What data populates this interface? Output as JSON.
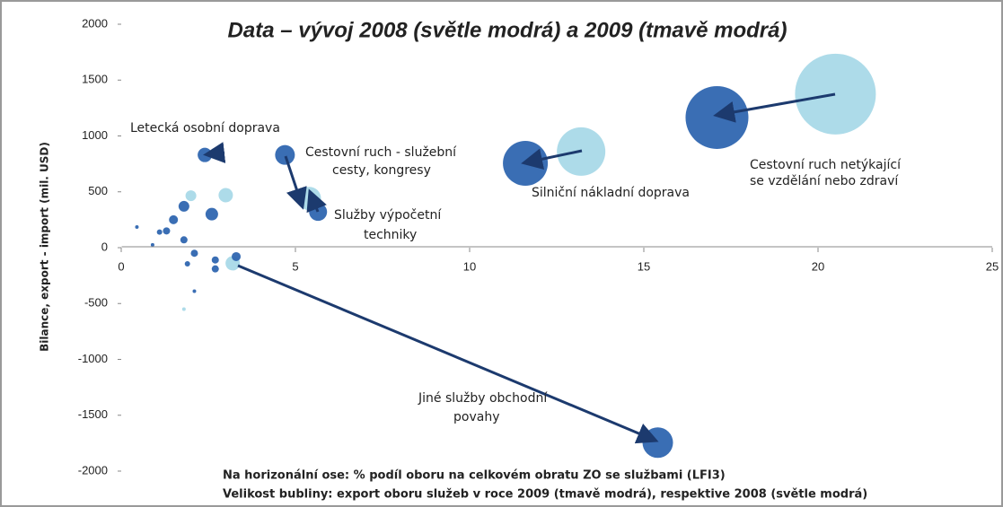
{
  "chart_data": {
    "type": "bubble",
    "title": "Data – vývoj 2008 (světle modrá) a 2009 (tmavě modrá)",
    "y_label": "Bilance, export - import (mil. USD)",
    "notes": [
      "Na horizonální ose: % podíl oboru na celkovém obratu ZO se službami (LFI3)",
      "Velikost bubliny: export oboru služeb v roce 2009 (tmavě modrá), respektive 2008 (světle modrá)"
    ],
    "annotations": [
      "Letecká osobní doprava",
      "Cestovní ruch - služební",
      "cesty, kongresy",
      "Služby výpočetní",
      "techniky",
      "Silniční nákladní doprava",
      "Cestovní ruch netýkající",
      "se vzdělání nebo zdraví",
      "Jiné služby obchodní",
      "povahy"
    ],
    "xlim": [
      0,
      25
    ],
    "xticks": [
      0,
      5,
      10,
      15,
      20,
      25
    ],
    "ylim": [
      -2000,
      2000
    ],
    "yticks": [
      -2000,
      -1500,
      -1000,
      -500,
      0,
      500,
      1000,
      1500,
      2000
    ],
    "series": [
      {
        "color": "#a9d9e8",
        "x": [
          20.5,
          13.2,
          3.2,
          5.4,
          2.7,
          3.0,
          2.0,
          1.8
        ],
        "values": [
          1375,
          860,
          -140,
          440,
          845,
          470,
          465,
          -550
        ],
        "sizes": [
          45,
          27,
          8,
          13,
          6,
          8,
          6,
          2
        ]
      },
      {
        "color": "#2f66b0",
        "x": [
          17.1,
          11.6,
          15.4,
          4.7,
          5.65,
          2.4,
          2.6,
          1.8,
          1.5,
          1.3,
          1.8,
          2.1,
          2.7,
          3.3,
          2.7,
          1.9,
          1.1,
          0.45,
          0.9,
          2.1
        ],
        "values": [
          1165,
          755,
          -1745,
          830,
          320,
          830,
          300,
          370,
          250,
          150,
          70,
          -50,
          -110,
          -80,
          -190,
          -145,
          140,
          185,
          25,
          -390
        ],
        "sizes": [
          35,
          25,
          17,
          11,
          10,
          8,
          7,
          6,
          5,
          4,
          4,
          4,
          4,
          5,
          4,
          3,
          3,
          2,
          2,
          2
        ]
      }
    ]
  }
}
